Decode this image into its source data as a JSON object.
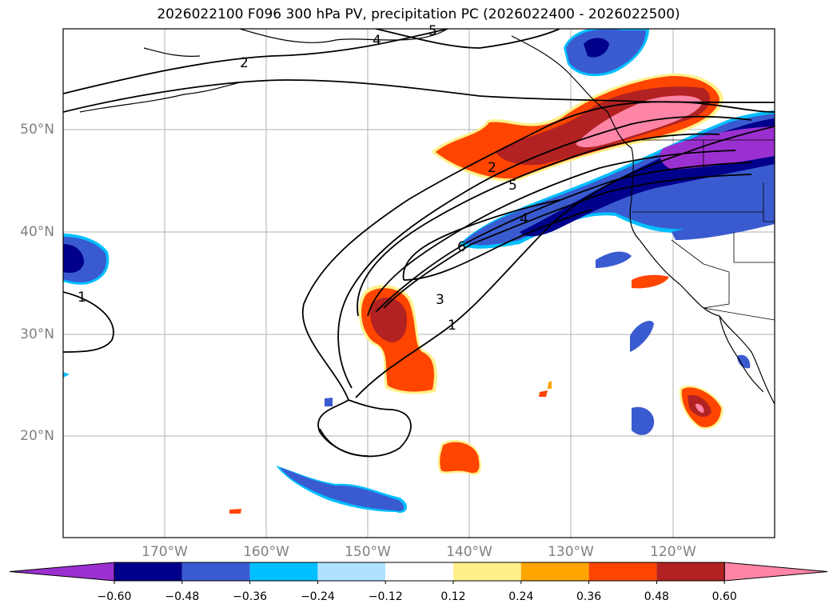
{
  "title": "2026022100 F096 300 hPa PV, precipitation PC (2026022400 - 2026022500)",
  "map": {
    "lat_labels": [
      "50°N",
      "40°N",
      "30°N",
      "20°N"
    ],
    "lon_labels": [
      "170°W",
      "160°W",
      "150°W",
      "140°W",
      "130°W",
      "120°W"
    ],
    "contour_labels": [
      "2",
      "4",
      "5",
      "2",
      "5",
      "4",
      "6",
      "3",
      "1",
      "1"
    ]
  },
  "colorbar": {
    "labels": [
      "−0.60",
      "−0.48",
      "−0.36",
      "−0.24",
      "−0.12",
      "0.12",
      "0.24",
      "0.36",
      "0.48",
      "0.60"
    ],
    "colors": [
      "#9b30d0",
      "#00008b",
      "#3a5bd0",
      "#00bfff",
      "#b0e2ff",
      "#ffffff",
      "#fff08a",
      "#ffa500",
      "#ff4500",
      "#b22222",
      "#ff85a6"
    ]
  },
  "colors": {
    "pink": "#ff85a6",
    "darkred": "#b22222",
    "orange": "#ff4500",
    "amber": "#ffa500",
    "yellow": "#fff08a",
    "purple": "#9b30d0",
    "navy": "#00008b",
    "blue": "#3a5bd0",
    "sky": "#00bfff",
    "lightblue": "#b0e2ff"
  }
}
